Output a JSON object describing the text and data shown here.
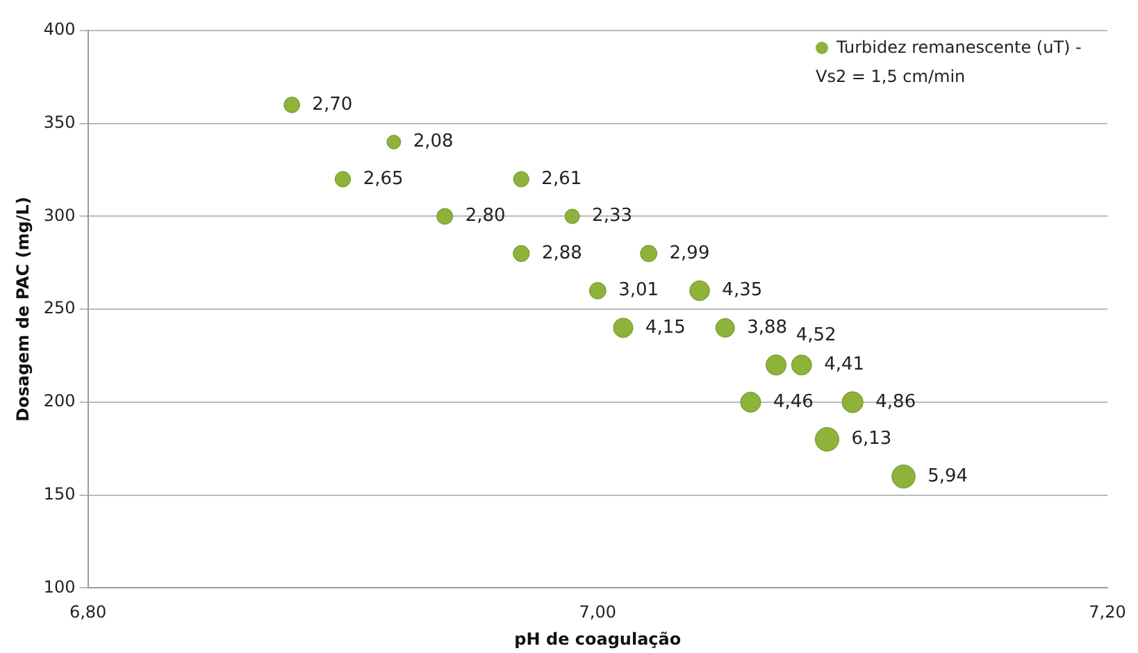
{
  "chart_data": {
    "type": "bubble",
    "xlabel": "pH de coagulação",
    "ylabel": "Dosagem de PAC (mg/L)",
    "xlim": [
      6.8,
      7.2
    ],
    "xticks": [
      {
        "value": 6.8,
        "label": "6,80"
      },
      {
        "value": 7.0,
        "label": "7,00"
      },
      {
        "value": 7.2,
        "label": "7,20"
      }
    ],
    "ylim": [
      100,
      400
    ],
    "yticks": [
      100,
      150,
      200,
      250,
      300,
      350,
      400
    ],
    "grid": "y",
    "legend": "top right",
    "series": [
      {
        "name": "Turbidez remanescente (uT) - Vs2 = 1,5 cm/min",
        "color": "#8db33a",
        "x": [
          6.88,
          6.92,
          6.9,
          6.97,
          6.94,
          6.99,
          6.97,
          7.02,
          7.0,
          7.04,
          7.01,
          7.05,
          7.07,
          7.08,
          7.06,
          7.1,
          7.09,
          7.12
        ],
        "values": [
          360,
          340,
          320,
          320,
          300,
          300,
          280,
          280,
          260,
          260,
          240,
          240,
          220,
          220,
          200,
          200,
          180,
          160
        ],
        "sizes": [
          2.7,
          2.08,
          2.65,
          2.61,
          2.8,
          2.33,
          2.88,
          2.99,
          3.01,
          4.35,
          4.15,
          3.88,
          4.52,
          4.41,
          4.46,
          4.86,
          6.13,
          5.94
        ],
        "value_labels": [
          "2,70",
          "2,08",
          "2,65",
          "2,61",
          "2,80",
          "2,33",
          "2,88",
          "2,99",
          "3,01",
          "4,35",
          "4,15",
          "3,88",
          "4,52",
          "4,41",
          "4,46",
          "4,86",
          "6,13",
          "5,94"
        ]
      }
    ]
  }
}
